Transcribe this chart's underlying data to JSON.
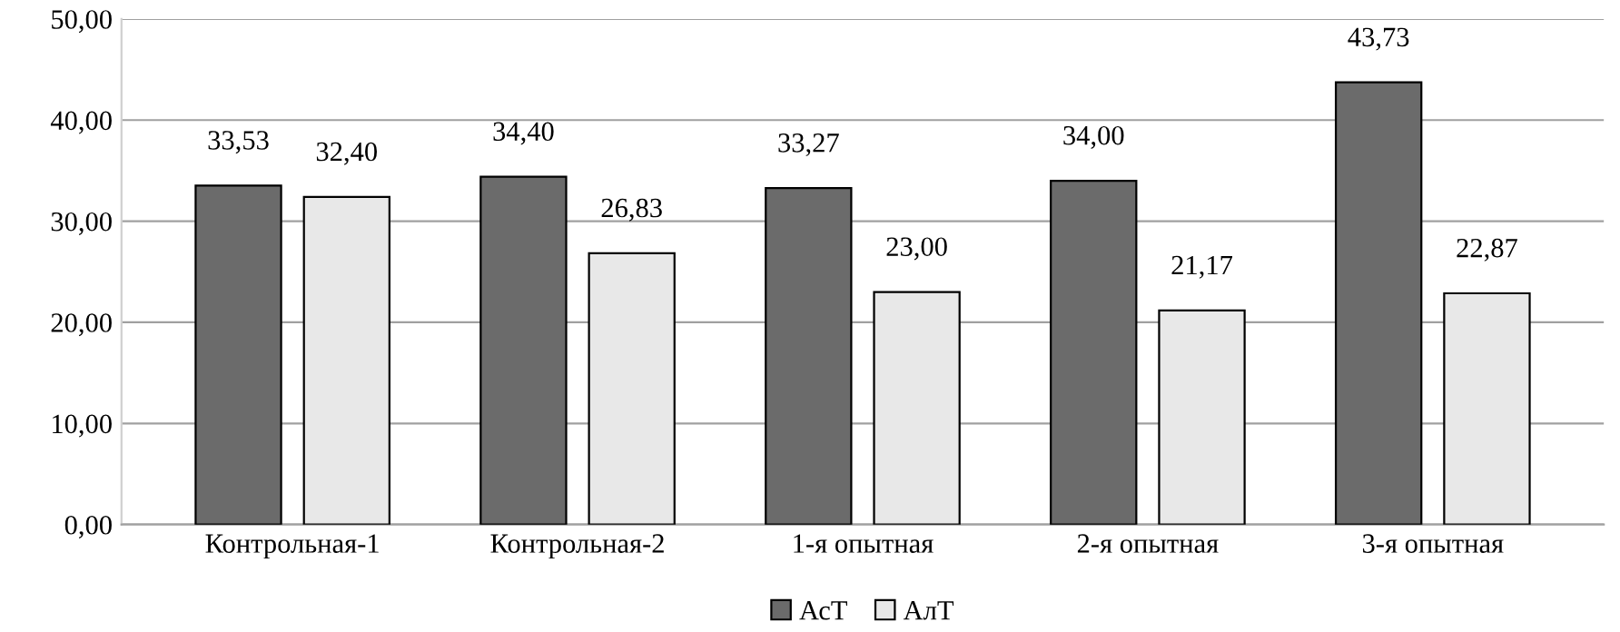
{
  "chart_data": {
    "type": "bar",
    "categories": [
      "Контрольная-1",
      "Контрольная-2",
      "1-я опытная",
      "2-я опытная",
      "3-я опытная"
    ],
    "series": [
      {
        "name": "АсТ",
        "color": "#6b6b6b",
        "values": [
          33.53,
          34.4,
          33.27,
          34.0,
          43.73
        ],
        "value_labels": [
          "33,53",
          "34,40",
          "33,27",
          "34,00",
          "43,73"
        ]
      },
      {
        "name": "АлТ",
        "color": "#e8e8e8",
        "values": [
          32.4,
          26.83,
          23.0,
          21.17,
          22.87
        ],
        "value_labels": [
          "32,40",
          "26,83",
          "23,00",
          "21,17",
          "22,87"
        ]
      }
    ],
    "ylim": [
      0,
      50
    ],
    "yticks": [
      {
        "value": 0,
        "label": "0,00"
      },
      {
        "value": 10,
        "label": "10,00"
      },
      {
        "value": 20,
        "label": "20,00"
      },
      {
        "value": 30,
        "label": "30,00"
      },
      {
        "value": 40,
        "label": "40,00"
      },
      {
        "value": 50,
        "label": "50,00"
      }
    ],
    "grid": "y",
    "legend": "bottom"
  }
}
